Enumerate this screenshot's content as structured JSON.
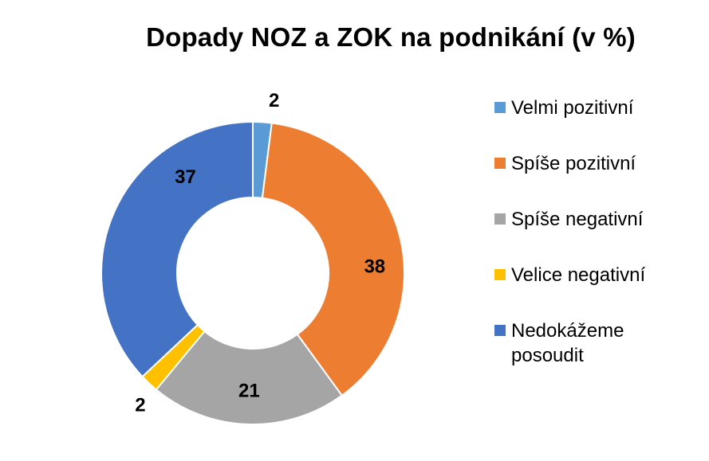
{
  "chart_data": {
    "type": "pie",
    "variant": "doughnut",
    "title": "Dopady NOZ a ZOK na podnikání (v %)",
    "legend_position": "right",
    "categories": [
      "Velmi pozitivní",
      "Spíše pozitivní",
      "Spíše negativní",
      "Velice negativní",
      "Nedokážeme posoudit"
    ],
    "values": [
      2,
      38,
      21,
      2,
      37
    ],
    "data_labels": [
      "2",
      "38",
      "21",
      "2",
      "37"
    ],
    "colors": [
      "#5b9bd5",
      "#ed7d31",
      "#a5a5a5",
      "#ffc000",
      "#4472c4"
    ]
  }
}
